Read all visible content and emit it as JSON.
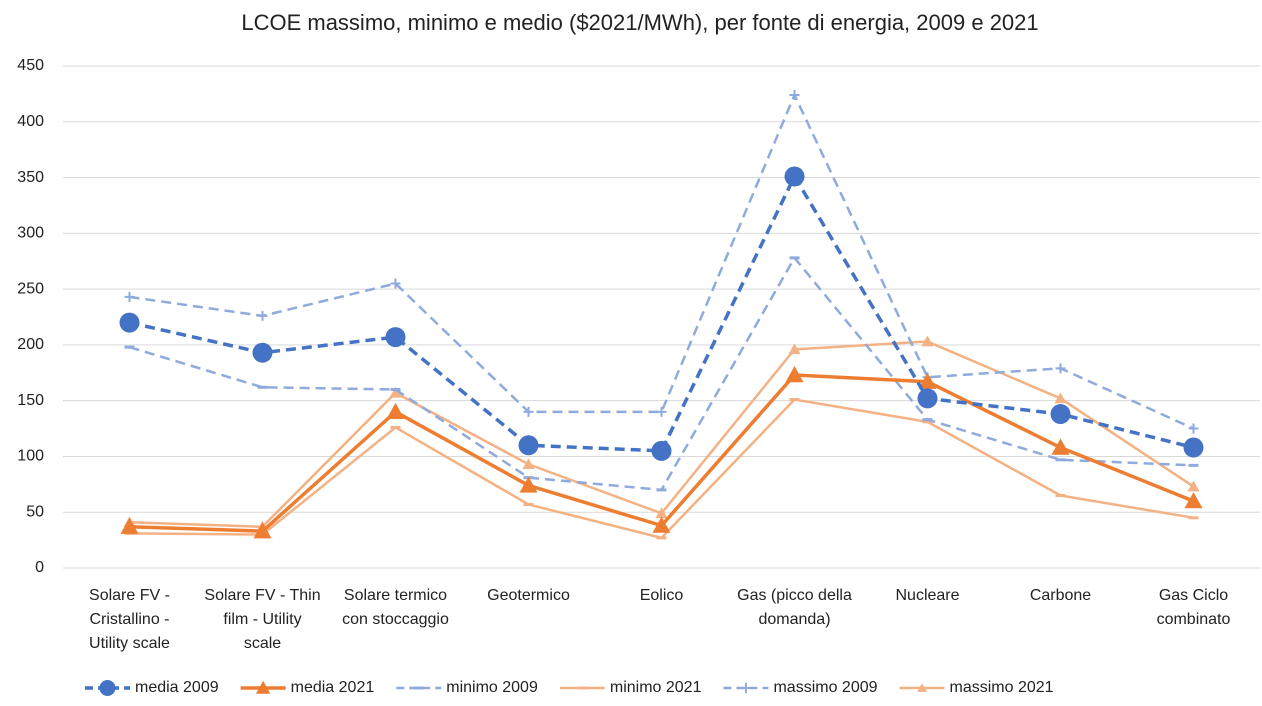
{
  "chart_data": {
    "type": "line",
    "title": "LCOE massimo, minimo e medio ($2021/MWh), per fonte di energia, 2009 e 2021",
    "categories": [
      "Solare FV - Cristallino - Utility scale",
      "Solare FV - Thin film - Utility scale",
      "Solare termico con stoccaggio",
      "Geotermico",
      "Eolico",
      "Gas (picco della domanda)",
      "Nucleare",
      "Carbone",
      "Gas Ciclo combinato"
    ],
    "series": [
      {
        "name": "media 2009",
        "color": "#4472c4",
        "dashed": true,
        "marker": "circle",
        "width": 3.5,
        "values": [
          220,
          193,
          207,
          110,
          105,
          351,
          152,
          138,
          108
        ]
      },
      {
        "name": "media 2021",
        "color": "#ed7d31",
        "dashed": false,
        "marker": "triangle",
        "width": 3.5,
        "values": [
          37,
          33,
          140,
          74,
          38,
          173,
          167,
          108,
          60
        ]
      },
      {
        "name": "minimo 2009",
        "color": "#8faadc",
        "dashed": true,
        "marker": "dash",
        "width": 2.5,
        "values": [
          198,
          162,
          160,
          81,
          70,
          278,
          133,
          97,
          92
        ]
      },
      {
        "name": "minimo 2021",
        "color": "#f4b183",
        "dashed": false,
        "marker": "dash",
        "width": 2.5,
        "values": [
          31,
          30,
          126,
          57,
          27,
          151,
          131,
          65,
          45
        ]
      },
      {
        "name": "massimo 2009",
        "color": "#8faadc",
        "dashed": true,
        "marker": "plus",
        "width": 2.5,
        "values": [
          243,
          226,
          255,
          140,
          140,
          424,
          171,
          179,
          125
        ]
      },
      {
        "name": "massimo 2021",
        "color": "#f4b183",
        "dashed": false,
        "marker": "small-triangle",
        "width": 2.5,
        "values": [
          41,
          37,
          157,
          93,
          49,
          196,
          203,
          152,
          73
        ]
      }
    ],
    "ylim": [
      0,
      450
    ],
    "yticks": [
      0,
      50,
      100,
      150,
      200,
      250,
      300,
      350,
      400,
      450
    ],
    "grid": true,
    "legend": "bottom"
  }
}
